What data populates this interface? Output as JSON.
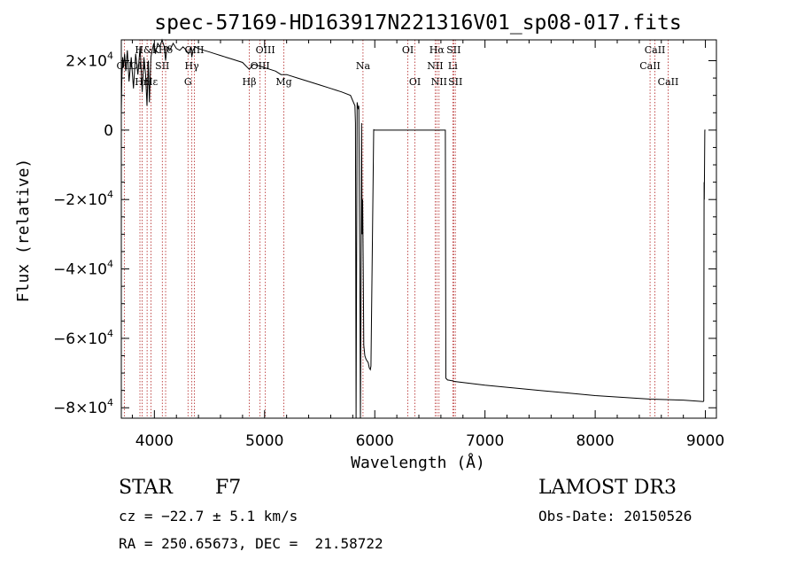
{
  "chart_data": {
    "type": "line",
    "title": "spec-57169-HD163917N221316V01_sp08-017.fits",
    "xlabel": "Wavelength (Å)",
    "ylabel": "Flux (relative)",
    "xlim": [
      3700,
      9100
    ],
    "ylim": [
      -83000,
      26000
    ],
    "xticks": [
      {
        "value": 4000,
        "label": "4000"
      },
      {
        "value": 5000,
        "label": "5000"
      },
      {
        "value": 6000,
        "label": "6000"
      },
      {
        "value": 7000,
        "label": "7000"
      },
      {
        "value": 8000,
        "label": "8000"
      },
      {
        "value": 9000,
        "label": "9000"
      }
    ],
    "yticks": [
      {
        "value": 20000,
        "mant": "2×10",
        "exp": "4"
      },
      {
        "value": 0,
        "mant": "0",
        "exp": ""
      },
      {
        "value": -20000,
        "mant": "−2×10",
        "exp": "4"
      },
      {
        "value": -40000,
        "mant": "−4×10",
        "exp": "4"
      },
      {
        "value": -60000,
        "mant": "−6×10",
        "exp": "4"
      },
      {
        "value": -80000,
        "mant": "−8×10",
        "exp": "4"
      }
    ],
    "series": [
      {
        "name": "flux",
        "x": [
          3700,
          3705,
          3712,
          3720,
          3730,
          3740,
          3755,
          3770,
          3790,
          3810,
          3830,
          3850,
          3870,
          3890,
          3905,
          3920,
          3933,
          3945,
          3955,
          3968,
          3980,
          3995,
          4010,
          4030,
          4050,
          4070,
          4090,
          4102,
          4115,
          4140,
          4170,
          4200,
          4230,
          4260,
          4290,
          4310,
          4330,
          4340,
          4350,
          4370,
          4400,
          4450,
          4500,
          4550,
          4600,
          4650,
          4700,
          4750,
          4800,
          4861,
          4900,
          4950,
          5000,
          5050,
          5100,
          5150,
          5200,
          5300,
          5400,
          5500,
          5600,
          5700,
          5780,
          5820,
          5825,
          5830,
          5840,
          5850,
          5855,
          5860,
          5865,
          5870,
          5875,
          5880,
          5885,
          5890,
          5895,
          5900,
          5910,
          5920,
          5940,
          5950,
          5960,
          5965,
          5990,
          6000,
          6010,
          6100,
          6300,
          6500,
          6600,
          6640,
          6645,
          6660,
          6680,
          6700,
          6710,
          6720,
          7000,
          7500,
          8000,
          8500,
          8800,
          8980,
          8985,
          8988,
          8990,
          8995,
          9000
        ],
        "y": [
          5000,
          15000,
          21000,
          18000,
          22000,
          17000,
          23000,
          14000,
          21000,
          12000,
          22000,
          16000,
          24000,
          11000,
          21000,
          16000,
          7000,
          20000,
          8000,
          21000,
          23000,
          25000,
          22000,
          25000,
          24000,
          26000,
          24000,
          20000,
          24000,
          23000,
          25000,
          23500,
          23000,
          24000,
          23000,
          22000,
          24000,
          21000,
          23000,
          24000,
          23500,
          23000,
          22500,
          22000,
          21500,
          21000,
          20500,
          20000,
          19500,
          17500,
          19000,
          18500,
          18000,
          17500,
          17000,
          16000,
          16000,
          15000,
          14000,
          13000,
          12000,
          11000,
          10000,
          7000,
          2000,
          -84000,
          8000,
          6000,
          7000,
          -20000,
          -40000,
          -84000,
          -50000,
          2000,
          -30000,
          -20000,
          -40000,
          -62000,
          -65000,
          -66000,
          -67000,
          -68500,
          -69000,
          -68000,
          100,
          0,
          0,
          0,
          0,
          0,
          0,
          0,
          -71500,
          -72000,
          -72100,
          -72200,
          -72200,
          -72400,
          -73500,
          -75000,
          -76500,
          -77500,
          -77800,
          -78200,
          -78000,
          -15000,
          -20000,
          0,
          0
        ]
      }
    ],
    "lines": [
      {
        "label": "H&K",
        "wl": 3934,
        "row": 0
      },
      {
        "label": "OII",
        "wl": 3727,
        "row": 1
      },
      {
        "label": "OIII",
        "wl": 3869,
        "row": 1
      },
      {
        "label": "Hn",
        "wl": 3889,
        "row": 2
      },
      {
        "label": "Hε",
        "wl": 3970,
        "row": 2
      },
      {
        "label": "SII",
        "wl": 4072,
        "row": 1
      },
      {
        "label": "Hδ",
        "wl": 4102,
        "row": 0
      },
      {
        "label": "Hγ",
        "wl": 4340,
        "row": 1
      },
      {
        "label": "G",
        "wl": 4305,
        "row": 2
      },
      {
        "label": "OIII",
        "wl": 4363,
        "row": 0
      },
      {
        "label": "Hβ",
        "wl": 4861,
        "row": 2
      },
      {
        "label": "OIII",
        "wl": 4959,
        "row": 1
      },
      {
        "label": "OIII",
        "wl": 5007,
        "row": 0
      },
      {
        "label": "Mg",
        "wl": 5175,
        "row": 2
      },
      {
        "label": "Na",
        "wl": 5893,
        "row": 1
      },
      {
        "label": "OI",
        "wl": 6300,
        "row": 0
      },
      {
        "label": "OI",
        "wl": 6364,
        "row": 2
      },
      {
        "label": "Hα",
        "wl": 6563,
        "row": 0
      },
      {
        "label": "NII",
        "wl": 6548,
        "row": 1
      },
      {
        "label": "NII",
        "wl": 6583,
        "row": 2
      },
      {
        "label": "SII",
        "wl": 6716,
        "row": 0
      },
      {
        "label": "Li",
        "wl": 6708,
        "row": 1
      },
      {
        "label": "SII",
        "wl": 6731,
        "row": 2
      },
      {
        "label": "CaII",
        "wl": 8542,
        "row": 0
      },
      {
        "label": "CaII",
        "wl": 8498,
        "row": 1
      },
      {
        "label": "CaII",
        "wl": 8662,
        "row": 2
      }
    ]
  },
  "info": {
    "class_label": "STAR",
    "subclass": "F7",
    "survey": "LAMOST DR3",
    "cz": "cz = −22.7 ± 5.1 km/s",
    "obs_date": "Obs-Date: 20150526",
    "coords": "RA = 250.65673, DEC =  21.58722"
  },
  "colors": {
    "spectrum": "#000000",
    "line_marker": "#b22222",
    "axis": "#000000",
    "background": "#ffffff"
  }
}
